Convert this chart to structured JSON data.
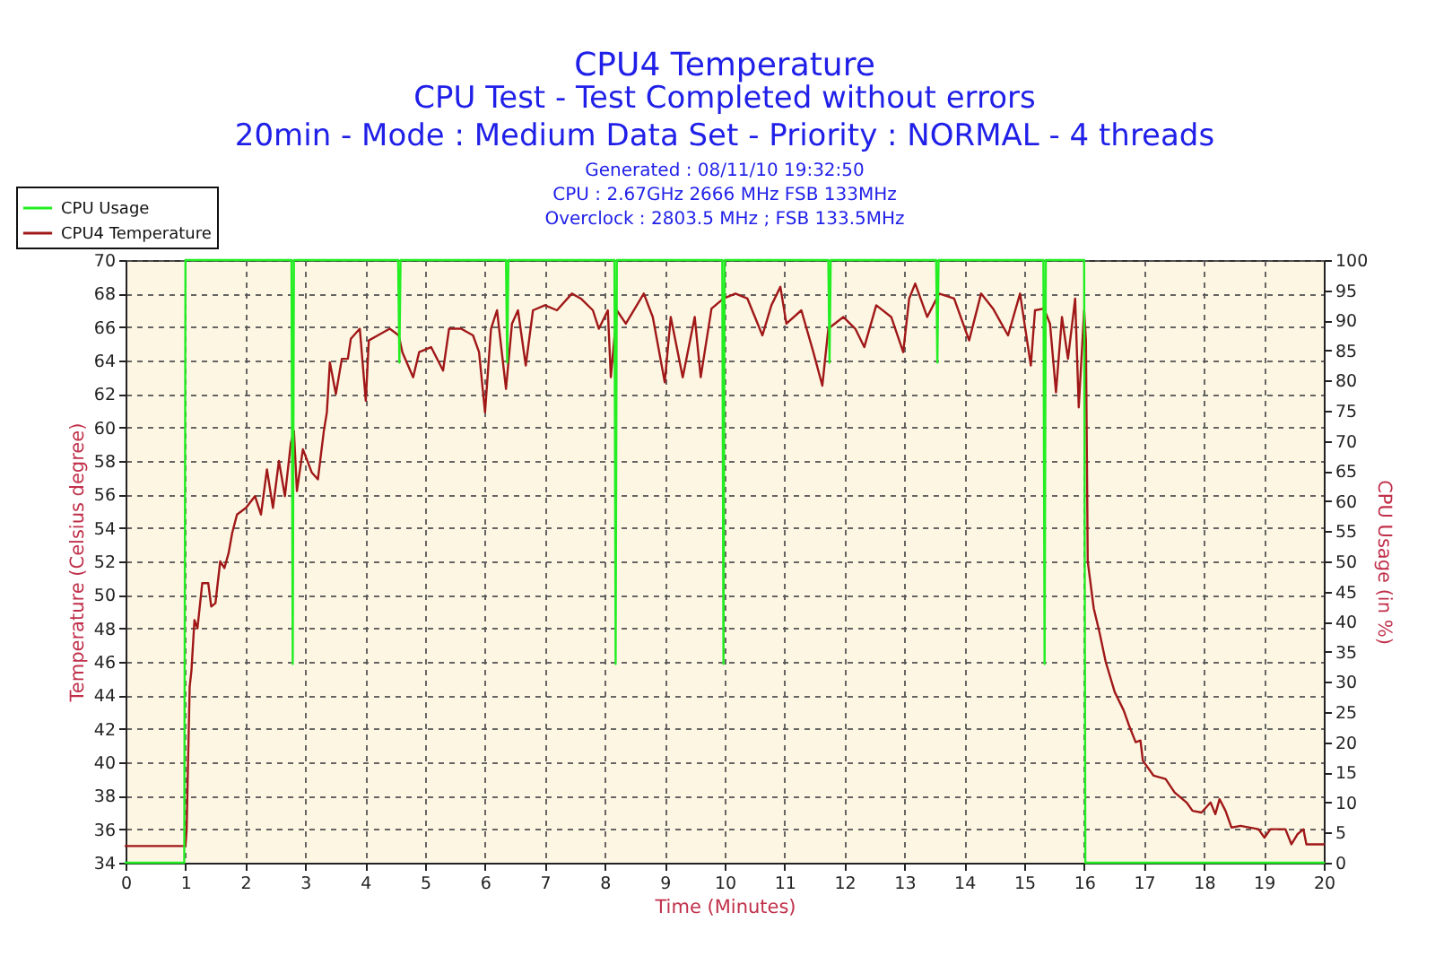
{
  "chart_data": {
    "type": "line",
    "title": "CPU4 Temperature",
    "subtitle": "CPU Test - Test Completed without errors\n20min - Mode : Medium Data Set - Priority : NORMAL - 4 threads",
    "annotations": [
      "Generated : 08/11/10 19:32:50",
      "CPU : 2.67GHz 2666 MHz FSB 133MHz",
      "Overclock : 2803.5 MHz ; FSB 133.5MHz"
    ],
    "xlabel": "Time (Minutes)",
    "ylabel": "Temperature (Celsius degree)",
    "y2label": "CPU Usage (in %)",
    "xlim": [
      0,
      20
    ],
    "xticks": [
      0,
      1,
      2,
      3,
      4,
      5,
      6,
      7,
      8,
      9,
      10,
      11,
      12,
      13,
      14,
      15,
      16,
      17,
      18,
      19,
      20
    ],
    "ylim": [
      34,
      70
    ],
    "yticks": [
      34,
      36,
      38,
      40,
      42,
      44,
      46,
      48,
      50,
      52,
      54,
      56,
      58,
      60,
      62,
      64,
      66,
      68,
      70
    ],
    "y2lim": [
      0,
      100
    ],
    "y2ticks": [
      0,
      5,
      10,
      15,
      20,
      25,
      30,
      35,
      40,
      45,
      50,
      55,
      60,
      65,
      70,
      75,
      80,
      85,
      90,
      95,
      100
    ],
    "grid": true,
    "legend": "top left",
    "series": [
      {
        "name": "CPU Usage",
        "color": "#22ee22",
        "axis": "y2",
        "x": [
          0,
          0.98,
          1.0,
          2.77,
          2.79,
          2.81,
          4.55,
          4.57,
          4.59,
          6.35,
          6.37,
          6.39,
          8.16,
          8.18,
          8.2,
          9.96,
          9.98,
          10.0,
          11.73,
          11.75,
          11.77,
          13.53,
          13.55,
          13.57,
          15.32,
          15.34,
          15.36,
          16.0,
          16.02,
          20
        ],
        "values": [
          0,
          0,
          100,
          100,
          33,
          100,
          100,
          83,
          100,
          100,
          83,
          100,
          100,
          33,
          100,
          100,
          33,
          100,
          100,
          83,
          100,
          100,
          83,
          100,
          100,
          33,
          100,
          100,
          0,
          0
        ]
      },
      {
        "name": "CPU4 Temperature",
        "color": "#a01818",
        "x": [
          0,
          1.0,
          1.02,
          1.04,
          1.07,
          1.1,
          1.15,
          1.2,
          1.28,
          1.38,
          1.43,
          1.5,
          1.58,
          1.65,
          1.72,
          1.78,
          1.86,
          2.01,
          2.16,
          2.26,
          2.36,
          2.46,
          2.56,
          2.66,
          2.76,
          2.81,
          2.86,
          2.96,
          3.11,
          3.21,
          3.31,
          3.36,
          3.41,
          3.51,
          3.61,
          3.71,
          3.76,
          3.91,
          4.01,
          4.06,
          4.21,
          4.41,
          4.56,
          4.62,
          4.8,
          4.9,
          5.1,
          5.3,
          5.4,
          5.6,
          5.8,
          5.9,
          6.0,
          6.1,
          6.2,
          6.35,
          6.45,
          6.55,
          6.68,
          6.8,
          7.0,
          7.2,
          7.45,
          7.6,
          7.8,
          7.9,
          8.05,
          8.1,
          8.2,
          8.35,
          8.65,
          8.8,
          9.0,
          9.1,
          9.3,
          9.5,
          9.6,
          9.78,
          9.98,
          10.18,
          10.38,
          10.63,
          10.78,
          10.93,
          11.03,
          11.28,
          11.48,
          11.63,
          11.73,
          11.98,
          12.18,
          12.33,
          12.53,
          12.78,
          12.98,
          13.08,
          13.18,
          13.38,
          13.58,
          13.83,
          14.08,
          14.28,
          14.48,
          14.73,
          14.93,
          15.11,
          15.18,
          15.33,
          15.43,
          15.53,
          15.63,
          15.73,
          15.85,
          15.91,
          16.0,
          16.03,
          16.06,
          16.16,
          16.26,
          16.36,
          16.51,
          16.66,
          16.76,
          16.86,
          16.94,
          16.98,
          17.16,
          17.36,
          17.51,
          17.71,
          17.81,
          17.96,
          18.11,
          18.19,
          18.26,
          18.36,
          18.46,
          18.61,
          18.91,
          19.01,
          19.11,
          19.36,
          19.46,
          19.56,
          19.66,
          19.71,
          20
        ],
        "values": [
          35,
          35,
          36.0,
          39.5,
          44.5,
          45.5,
          48.5,
          48.0,
          50.7,
          50.7,
          49.3,
          49.5,
          52.0,
          51.6,
          52.5,
          53.7,
          54.8,
          55.2,
          55.9,
          54.8,
          57.5,
          55.2,
          58.0,
          55.9,
          59.1,
          59.8,
          56.2,
          58.7,
          57.3,
          56.9,
          59.8,
          60.9,
          63.9,
          62.0,
          64.1,
          64.1,
          65.3,
          65.9,
          61.6,
          65.2,
          65.5,
          65.9,
          65.5,
          64.5,
          63.0,
          64.5,
          64.8,
          63.4,
          65.9,
          65.9,
          65.5,
          64.5,
          60.9,
          65.9,
          67.0,
          62.3,
          66.2,
          67.0,
          63.7,
          67.0,
          67.3,
          67.0,
          68.0,
          67.7,
          67.0,
          65.9,
          67.0,
          63.0,
          67.0,
          66.2,
          68.0,
          66.6,
          62.7,
          66.6,
          63.0,
          66.6,
          63.0,
          67.1,
          67.7,
          68.0,
          67.7,
          65.5,
          67.3,
          68.4,
          66.2,
          67.0,
          64.5,
          62.5,
          65.9,
          66.6,
          65.9,
          64.8,
          67.3,
          66.6,
          64.5,
          67.7,
          68.6,
          66.6,
          68.0,
          67.7,
          65.2,
          68.0,
          67.1,
          65.5,
          68.0,
          63.7,
          67.0,
          67.1,
          66.2,
          62.1,
          66.6,
          64.1,
          67.7,
          61.2,
          67.0,
          65.2,
          52.0,
          49.2,
          47.7,
          46.0,
          44.2,
          43.1,
          42.1,
          41.2,
          41.3,
          40.1,
          39.2,
          39.0,
          38.2,
          37.6,
          37.1,
          37.0,
          37.6,
          36.9,
          37.8,
          37.1,
          36.1,
          36.2,
          36.0,
          35.5,
          36.0,
          36.0,
          35.1,
          35.7,
          36.0,
          35.1,
          35.1
        ]
      }
    ]
  }
}
